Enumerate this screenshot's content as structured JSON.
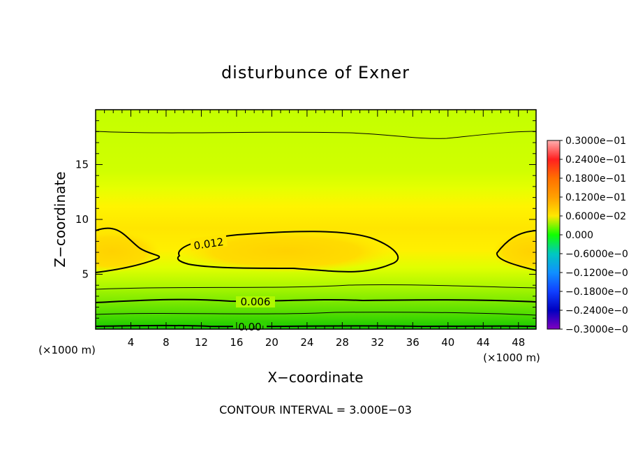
{
  "chart_data": {
    "type": "heatmap",
    "title": "disturbunce of Exner",
    "xlabel": "X−coordinate",
    "ylabel": "Z−coordinate",
    "x_unit": "(×1000 m)",
    "footer": "CONTOUR INTERVAL = 3.000E−03",
    "xlim": [
      0,
      50
    ],
    "ylim": [
      0,
      20
    ],
    "xticks": [
      "4",
      "8",
      "12",
      "16",
      "20",
      "24",
      "28",
      "32",
      "36",
      "40",
      "44",
      "48"
    ],
    "yticks": [
      "5",
      "10",
      "15"
    ],
    "contour_labels": [
      "0.012",
      "0.006",
      "0.00"
    ],
    "colorbar": {
      "labels": [
        "0.3000e−01",
        "0.2400e−01",
        "0.1800e−01",
        "0.1200e−01",
        "0.6000e−02",
        "0.000",
        "−0.6000e−0",
        "−0.1200e−0",
        "−0.1800e−0",
        "−0.2400e−0",
        "−0.3000e−0"
      ],
      "colors": [
        "#ffb0b0",
        "#ff2020",
        "#ff7000",
        "#ffa000",
        "#ffe800",
        "#10ff00",
        "#00c8c0",
        "#1090ff",
        "#1040ff",
        "#0000c0",
        "#8000c0"
      ]
    },
    "field_colors": {
      "low": "#20d000",
      "mid_low": "#80ee00",
      "mid": "#c8ff00",
      "high": "#ffee00",
      "peak": "#ffd000"
    }
  }
}
